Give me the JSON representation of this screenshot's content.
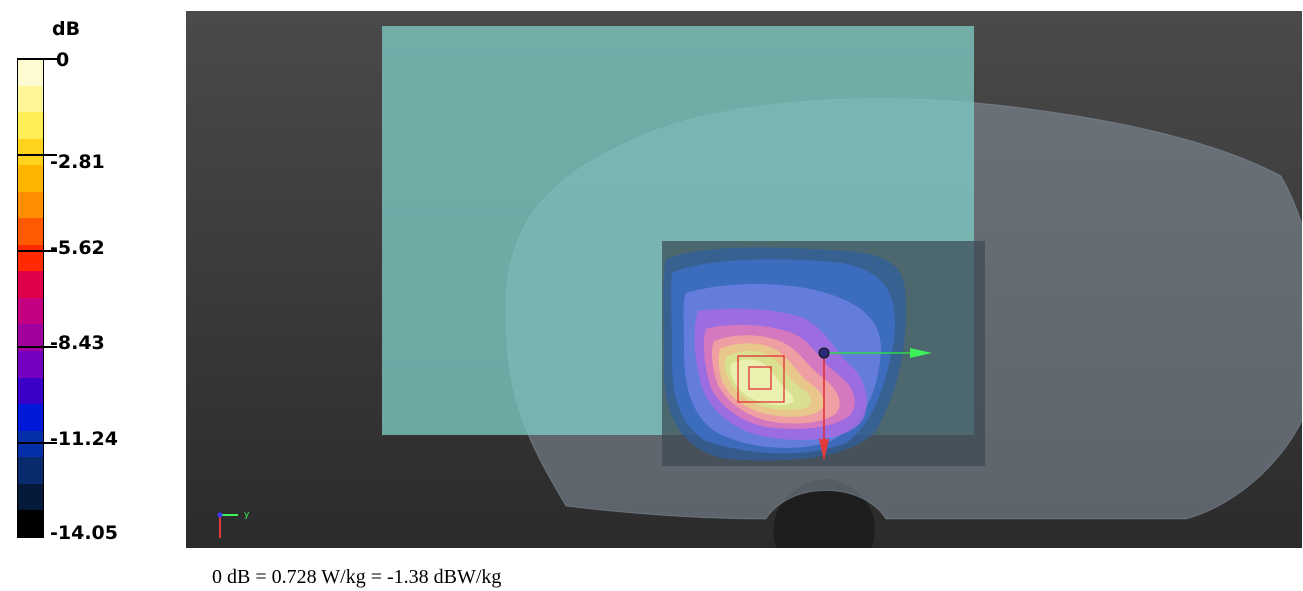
{
  "chart_data": {
    "type": "heatmap",
    "colorbar": {
      "unit": "dB",
      "tick_labels": [
        "0",
        "-2.81",
        "-5.62",
        "-8.43",
        "-11.24",
        "-14.05"
      ],
      "range": [
        -14.05,
        0
      ],
      "colors": [
        "#fffbd0",
        "#fff69a",
        "#ffee55",
        "#ffd21e",
        "#ffb500",
        "#ff8f00",
        "#ff5a00",
        "#ff2a00",
        "#e0004a",
        "#c40080",
        "#a0009d",
        "#7400c0",
        "#3b00c8",
        "#0018d8",
        "#0630a8",
        "#082b6e",
        "#041a38",
        "#000000"
      ]
    },
    "caption": "0 dB = 0.728 W/kg = -1.38 dBW/kg",
    "axis_triad": {
      "y_label": "y"
    }
  }
}
